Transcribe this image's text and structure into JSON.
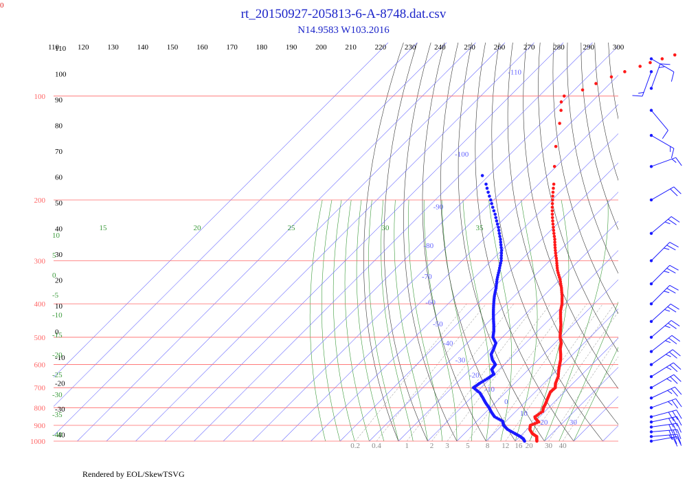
{
  "title": "rt_20150927-205813-6-A-8748.dat.csv",
  "subtitle": "N14.9583 W103.2016",
  "corner_label": "0",
  "credit": "Rendered by EOL/SkewTSVG",
  "colors": {
    "title": "#1c25c9",
    "temperature": "#ff1a1a",
    "dewpoint": "#1a1aff",
    "isobar": "#ff6666",
    "isotherm": "#6666ff",
    "dry_adiabat": "#333333",
    "moist_adiabat": "#3a9a3a",
    "mixing_ratio": "#aaaaaa",
    "wind": "#1a1aff"
  },
  "chart_data": {
    "type": "skew-t",
    "pressure_labels": [
      "100",
      "200",
      "300",
      "400",
      "500",
      "600",
      "700",
      "800",
      "900",
      "1000"
    ],
    "isotherm_top_labels": [
      "110",
      "120",
      "130",
      "140",
      "150",
      "160",
      "170",
      "180",
      "190",
      "200",
      "210",
      "220",
      "230",
      "240",
      "250",
      "260",
      "270",
      "280",
      "290",
      "300"
    ],
    "isotherm_inner_labels": [
      "-110",
      "-100",
      "-90",
      "-80",
      "-70",
      "-60",
      "-50",
      "-40",
      "-30",
      "-20",
      "-10",
      "0",
      "10",
      "20",
      "30"
    ],
    "dry_adiabat_labels": [
      "110",
      "100",
      "90",
      "80",
      "70",
      "60",
      "50",
      "40",
      "30",
      "20",
      "10",
      "0",
      "-10",
      "-20",
      "-30",
      "-40"
    ],
    "moist_adiabat_top_labels": [
      "15",
      "20",
      "25",
      "30",
      "35"
    ],
    "moist_adiabat_left_labels": [
      "10",
      "5",
      "0",
      "-5",
      "-10",
      "-15",
      "-20",
      "-25",
      "-30",
      "-35",
      "-40"
    ],
    "mixing_ratio_labels": [
      "0.2",
      "0.4",
      "1",
      "2",
      "3",
      "5",
      "8",
      "12",
      "16",
      "20",
      "30",
      "40"
    ],
    "temperature_profile": [
      [
        1000,
        27.4
      ],
      [
        985,
        26.6
      ],
      [
        970,
        25.8
      ],
      [
        950,
        23.2
      ],
      [
        925,
        21.0
      ],
      [
        900,
        19.8
      ],
      [
        880,
        21.5
      ],
      [
        860,
        19.2
      ],
      [
        850,
        18.4
      ],
      [
        820,
        19.2
      ],
      [
        800,
        18.2
      ],
      [
        780,
        17.6
      ],
      [
        750,
        16.4
      ],
      [
        720,
        15.2
      ],
      [
        700,
        15.4
      ],
      [
        680,
        14.0
      ],
      [
        650,
        12.6
      ],
      [
        620,
        10.4
      ],
      [
        600,
        9.0
      ],
      [
        580,
        7.6
      ],
      [
        560,
        5.8
      ],
      [
        540,
        3.8
      ],
      [
        520,
        2.2
      ],
      [
        500,
        -0.2
      ],
      [
        480,
        -2.2
      ],
      [
        460,
        -4.2
      ],
      [
        440,
        -6.6
      ],
      [
        420,
        -9.0
      ],
      [
        400,
        -11.0
      ],
      [
        380,
        -13.6
      ],
      [
        360,
        -16.6
      ],
      [
        340,
        -20.0
      ],
      [
        320,
        -24.0
      ],
      [
        300,
        -27.6
      ],
      [
        280,
        -31.6
      ],
      [
        260,
        -35.6
      ],
      [
        240,
        -40.2
      ],
      [
        220,
        -45.0
      ],
      [
        200,
        -49.8
      ],
      [
        180,
        -54.8
      ],
      [
        160,
        -60.6
      ],
      [
        140,
        -67.0
      ],
      [
        120,
        -73.6
      ],
      [
        110,
        -77.6
      ],
      [
        104,
        -80.4
      ],
      [
        100,
        -81.4
      ],
      [
        96,
        -77.2
      ],
      [
        92,
        -74.8
      ],
      [
        88,
        -71.8
      ],
      [
        85,
        -69.0
      ],
      [
        82,
        -65.6
      ],
      [
        80,
        -63.4
      ],
      [
        78,
        -60.6
      ],
      [
        76,
        -57.6
      ]
    ],
    "dewpoint_profile": [
      [
        1000,
        23.2
      ],
      [
        985,
        22.0
      ],
      [
        970,
        20.2
      ],
      [
        950,
        17.2
      ],
      [
        925,
        13.4
      ],
      [
        900,
        10.6
      ],
      [
        875,
        8.8
      ],
      [
        850,
        4.6
      ],
      [
        825,
        2.0
      ],
      [
        800,
        -0.4
      ],
      [
        775,
        -3.2
      ],
      [
        750,
        -5.8
      ],
      [
        725,
        -8.6
      ],
      [
        700,
        -12.6
      ],
      [
        680,
        -12.0
      ],
      [
        660,
        -11.0
      ],
      [
        640,
        -10.2
      ],
      [
        620,
        -12.6
      ],
      [
        600,
        -13.0
      ],
      [
        580,
        -15.8
      ],
      [
        560,
        -18.0
      ],
      [
        540,
        -19.0
      ],
      [
        520,
        -20.2
      ],
      [
        500,
        -23.2
      ],
      [
        480,
        -25.0
      ],
      [
        460,
        -27.2
      ],
      [
        440,
        -29.6
      ],
      [
        420,
        -32.0
      ],
      [
        400,
        -34.4
      ],
      [
        380,
        -36.8
      ],
      [
        360,
        -39.0
      ],
      [
        340,
        -41.6
      ],
      [
        320,
        -44.0
      ],
      [
        300,
        -46.6
      ],
      [
        280,
        -50.0
      ],
      [
        260,
        -54.2
      ],
      [
        240,
        -59.0
      ],
      [
        220,
        -64.6
      ],
      [
        200,
        -71.0
      ],
      [
        180,
        -78.0
      ],
      [
        170,
        -82.2
      ]
    ],
    "wind_barbs": [
      {
        "p": 1000,
        "dir": 260,
        "spd": 20
      },
      {
        "p": 970,
        "dir": 265,
        "spd": 25
      },
      {
        "p": 940,
        "dir": 265,
        "spd": 30
      },
      {
        "p": 910,
        "dir": 262,
        "spd": 30
      },
      {
        "p": 880,
        "dir": 258,
        "spd": 30
      },
      {
        "p": 850,
        "dir": 255,
        "spd": 30
      },
      {
        "p": 800,
        "dir": 250,
        "spd": 25
      },
      {
        "p": 750,
        "dir": 245,
        "spd": 25
      },
      {
        "p": 700,
        "dir": 240,
        "spd": 25
      },
      {
        "p": 650,
        "dir": 238,
        "spd": 25
      },
      {
        "p": 600,
        "dir": 235,
        "spd": 25
      },
      {
        "p": 550,
        "dir": 232,
        "spd": 25
      },
      {
        "p": 500,
        "dir": 230,
        "spd": 25
      },
      {
        "p": 450,
        "dir": 228,
        "spd": 25
      },
      {
        "p": 400,
        "dir": 225,
        "spd": 25
      },
      {
        "p": 350,
        "dir": 225,
        "spd": 25
      },
      {
        "p": 300,
        "dir": 225,
        "spd": 25
      },
      {
        "p": 250,
        "dir": 230,
        "spd": 25
      },
      {
        "p": 200,
        "dir": 240,
        "spd": 20
      },
      {
        "p": 160,
        "dir": 250,
        "spd": 15
      },
      {
        "p": 130,
        "dir": 300,
        "spd": 15
      },
      {
        "p": 110,
        "dir": 320,
        "spd": 10
      },
      {
        "p": 95,
        "dir": 200,
        "spd": 15
      },
      {
        "p": 85,
        "dir": 20,
        "spd": 15
      },
      {
        "p": 78,
        "dir": 300,
        "spd": 10
      }
    ]
  }
}
